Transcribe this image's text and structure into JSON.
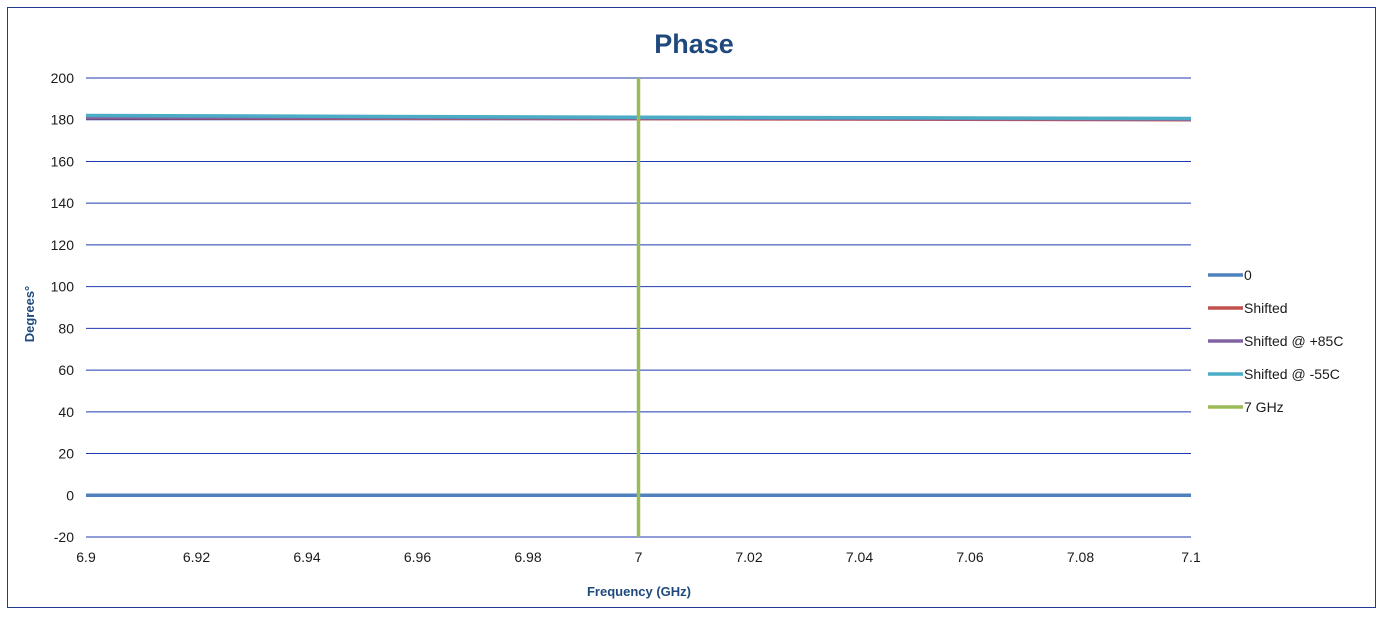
{
  "chart_data": {
    "type": "line",
    "title": "Phase",
    "xlabel": "Frequency (GHz)",
    "ylabel": "Degrees°",
    "xlim": [
      6.9,
      7.1
    ],
    "ylim": [
      -20,
      200
    ],
    "x_ticks": [
      "6.9",
      "6.92",
      "6.94",
      "6.96",
      "6.98",
      "7",
      "7.02",
      "7.04",
      "7.06",
      "7.08",
      "7.1"
    ],
    "y_ticks": [
      "200",
      "180",
      "160",
      "140",
      "120",
      "100",
      "80",
      "60",
      "40",
      "20",
      "0",
      "-20"
    ],
    "grid": "horizontal",
    "legend_position": "right",
    "series": [
      {
        "name": "0",
        "color": "#4f81bd",
        "x": [
          6.9,
          7.0,
          7.1
        ],
        "y": [
          0,
          0,
          0
        ]
      },
      {
        "name": "Shifted",
        "color": "#c0504d",
        "x": [
          6.9,
          7.0,
          7.1
        ],
        "y": [
          181,
          180.5,
          180
        ]
      },
      {
        "name": "Shifted @ +85C",
        "color": "#8064a2",
        "x": [
          6.9,
          7.0,
          7.1
        ],
        "y": [
          181.3,
          180.8,
          180.3
        ]
      },
      {
        "name": "Shifted @ -55C",
        "color": "#4bacc6",
        "x": [
          6.9,
          7.0,
          7.1
        ],
        "y": [
          182,
          181.2,
          180.6
        ]
      },
      {
        "name": "7 GHz",
        "color": "#9bbb59",
        "x": [
          7.0,
          7.0
        ],
        "y": [
          -20,
          200
        ]
      }
    ]
  }
}
